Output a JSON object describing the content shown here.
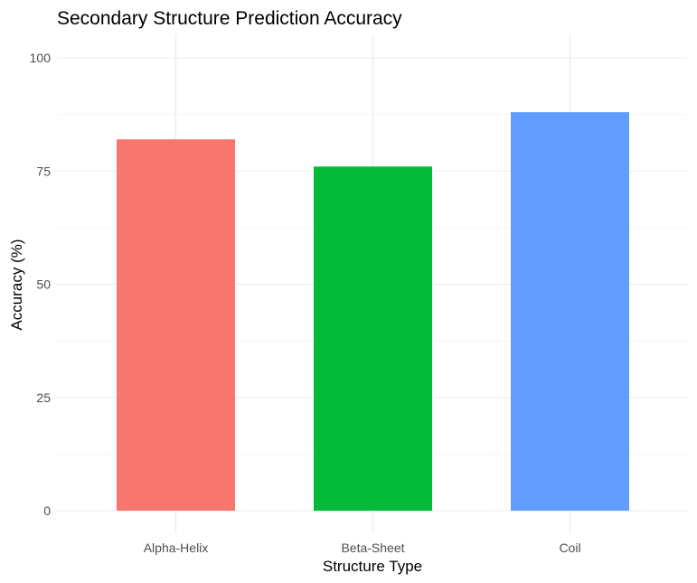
{
  "chart_data": {
    "type": "bar",
    "title": "Secondary Structure Prediction Accuracy",
    "xlabel": "Structure Type",
    "ylabel": "Accuracy (%)",
    "categories": [
      "Alpha-Helix",
      "Beta-Sheet",
      "Coil"
    ],
    "values": [
      82,
      76,
      88
    ],
    "colors": [
      "#F8766D",
      "#00BA38",
      "#619CFF"
    ],
    "ylim": [
      0,
      105
    ],
    "yticks": [
      0,
      25,
      50,
      75,
      100
    ],
    "ytick_labels": [
      "0",
      "25",
      "50",
      "75",
      "100"
    ],
    "grid": true,
    "legend": "none"
  }
}
